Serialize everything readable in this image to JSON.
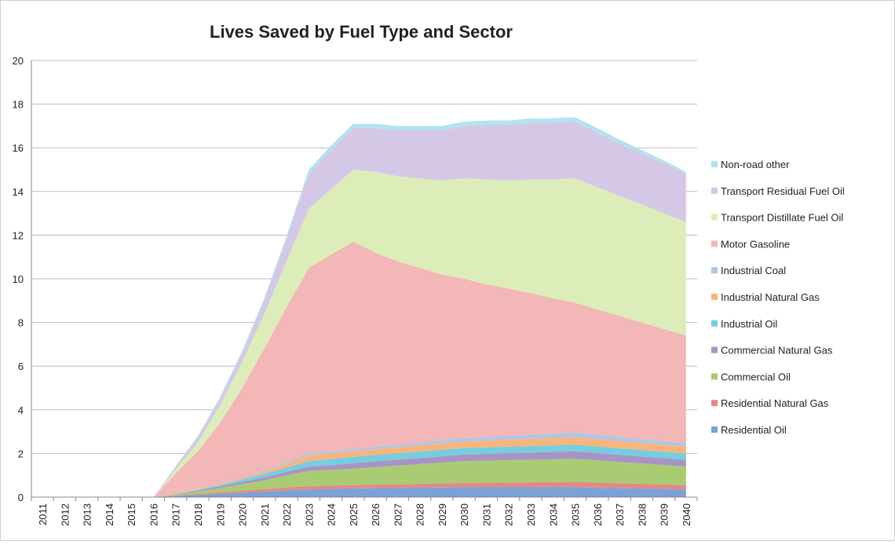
{
  "chart_data": {
    "type": "stacked_area",
    "title": "Lives Saved by Fuel Type and Sector",
    "categories": [
      "2011",
      "2012",
      "2013",
      "2014",
      "2015",
      "2016",
      "2017",
      "2018",
      "2019",
      "2020",
      "2021",
      "2022",
      "2023",
      "2024",
      "2025",
      "2026",
      "2027",
      "2028",
      "2029",
      "2030",
      "2031",
      "2032",
      "2033",
      "2034",
      "2035",
      "2036",
      "2037",
      "2038",
      "2039",
      "2040"
    ],
    "series": [
      {
        "name": "Residential Oil",
        "color": "#7ba2d6",
        "values": [
          0,
          0,
          0,
          0,
          0,
          0,
          0.05,
          0.1,
          0.15,
          0.2,
          0.25,
          0.3,
          0.35,
          0.38,
          0.4,
          0.41,
          0.42,
          0.43,
          0.44,
          0.45,
          0.45,
          0.45,
          0.45,
          0.45,
          0.45,
          0.43,
          0.41,
          0.39,
          0.37,
          0.35
        ]
      },
      {
        "name": "Residential Natural Gas",
        "color": "#e08a88",
        "values": [
          0,
          0,
          0,
          0,
          0,
          0,
          0.02,
          0.05,
          0.07,
          0.1,
          0.12,
          0.14,
          0.15,
          0.15,
          0.15,
          0.16,
          0.17,
          0.18,
          0.19,
          0.2,
          0.21,
          0.22,
          0.23,
          0.24,
          0.25,
          0.24,
          0.23,
          0.22,
          0.21,
          0.2
        ]
      },
      {
        "name": "Commercial Oil",
        "color": "#a9cc72",
        "values": [
          0,
          0,
          0,
          0,
          0,
          0,
          0.05,
          0.1,
          0.2,
          0.3,
          0.4,
          0.55,
          0.7,
          0.72,
          0.75,
          0.8,
          0.85,
          0.9,
          0.95,
          1.0,
          1.01,
          1.02,
          1.03,
          1.04,
          1.05,
          1.01,
          0.97,
          0.93,
          0.89,
          0.85
        ]
      },
      {
        "name": "Commercial Natural Gas",
        "color": "#a894c4",
        "values": [
          0,
          0,
          0,
          0,
          0,
          0,
          0.02,
          0.05,
          0.07,
          0.1,
          0.13,
          0.17,
          0.2,
          0.22,
          0.25,
          0.26,
          0.27,
          0.28,
          0.29,
          0.3,
          0.31,
          0.32,
          0.33,
          0.34,
          0.35,
          0.34,
          0.33,
          0.32,
          0.31,
          0.3
        ]
      },
      {
        "name": "Industrial Oil",
        "color": "#76cde0",
        "values": [
          0,
          0,
          0,
          0,
          0,
          0,
          0.01,
          0.03,
          0.06,
          0.1,
          0.15,
          0.2,
          0.25,
          0.28,
          0.3,
          0.3,
          0.3,
          0.3,
          0.3,
          0.3,
          0.3,
          0.3,
          0.3,
          0.3,
          0.3,
          0.3,
          0.3,
          0.3,
          0.3,
          0.3
        ]
      },
      {
        "name": "Industrial Natural Gas",
        "color": "#f9b47c",
        "values": [
          0,
          0,
          0,
          0,
          0,
          0,
          0.01,
          0.02,
          0.03,
          0.05,
          0.1,
          0.17,
          0.25,
          0.25,
          0.25,
          0.26,
          0.27,
          0.28,
          0.29,
          0.3,
          0.31,
          0.32,
          0.33,
          0.34,
          0.35,
          0.34,
          0.33,
          0.32,
          0.31,
          0.3
        ]
      },
      {
        "name": "Industrial Coal",
        "color": "#adc6e6",
        "values": [
          0,
          0,
          0,
          0,
          0,
          0,
          0.01,
          0.01,
          0.02,
          0.05,
          0.06,
          0.08,
          0.1,
          0.1,
          0.1,
          0.11,
          0.12,
          0.13,
          0.14,
          0.15,
          0.16,
          0.17,
          0.18,
          0.19,
          0.2,
          0.19,
          0.18,
          0.17,
          0.16,
          0.15
        ]
      },
      {
        "name": "Motor Gasoline",
        "color": "#f2b7b6",
        "values": [
          0,
          0,
          0,
          0,
          0,
          0,
          0.9,
          1.74,
          2.8,
          4.1,
          5.6,
          7.1,
          8.5,
          9.0,
          9.5,
          8.9,
          8.4,
          8.0,
          7.6,
          7.3,
          7.0,
          6.75,
          6.5,
          6.2,
          5.95,
          5.75,
          5.55,
          5.35,
          5.15,
          4.95
        ]
      },
      {
        "name": "Transport Distillate Fuel Oil",
        "color": "#dcedb9",
        "values": [
          0,
          0,
          0,
          0,
          0,
          0,
          0.2,
          0.4,
          0.8,
          1.2,
          1.6,
          2.1,
          2.7,
          3.0,
          3.3,
          3.7,
          3.9,
          4.1,
          4.3,
          4.6,
          4.8,
          4.95,
          5.2,
          5.45,
          5.7,
          5.6,
          5.5,
          5.4,
          5.3,
          5.2
        ]
      },
      {
        "name": "Transport Residual Fuel Oil",
        "color": "#d4c8e6",
        "values": [
          0,
          0,
          0,
          0,
          0,
          0,
          0.12,
          0.25,
          0.3,
          0.4,
          0.6,
          1.0,
          1.6,
          1.8,
          1.9,
          2.0,
          2.1,
          2.2,
          2.3,
          2.4,
          2.5,
          2.55,
          2.6,
          2.6,
          2.6,
          2.5,
          2.4,
          2.35,
          2.3,
          2.2
        ]
      },
      {
        "name": "Non-road other",
        "color": "#b3e3f0",
        "values": [
          0,
          0,
          0,
          0,
          0,
          0,
          0.02,
          0.05,
          0.08,
          0.1,
          0.12,
          0.15,
          0.2,
          0.2,
          0.2,
          0.2,
          0.2,
          0.2,
          0.2,
          0.2,
          0.2,
          0.2,
          0.2,
          0.2,
          0.2,
          0.2,
          0.18,
          0.15,
          0.12,
          0.1
        ]
      }
    ],
    "ylim": [
      0,
      20
    ],
    "yticks": [
      0,
      2,
      4,
      6,
      8,
      10,
      12,
      14,
      16,
      18,
      20
    ],
    "grid": true,
    "legend": "right"
  }
}
